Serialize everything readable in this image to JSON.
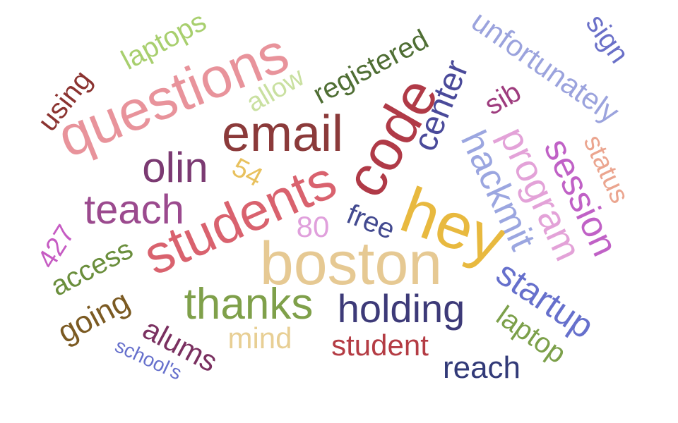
{
  "words": [
    {
      "text": "boston",
      "color": "#e6c993"
    },
    {
      "text": "students",
      "color": "#d9626e"
    },
    {
      "text": "hey",
      "color": "#e8b93f"
    },
    {
      "text": "code",
      "color": "#b03a47"
    },
    {
      "text": "email",
      "color": "#8b3a3a"
    },
    {
      "text": "questions",
      "color": "#e8939b"
    },
    {
      "text": "holding",
      "color": "#3d3a78"
    },
    {
      "text": "thanks",
      "color": "#7fa04a"
    },
    {
      "text": "teach",
      "color": "#9b4a8e"
    },
    {
      "text": "olin",
      "color": "#7b3a72"
    },
    {
      "text": "hackmit",
      "color": "#9ba6e0"
    },
    {
      "text": "program",
      "color": "#e3a2d8"
    },
    {
      "text": "session",
      "color": "#c061c6"
    },
    {
      "text": "startup",
      "color": "#6670cc"
    },
    {
      "text": "center",
      "color": "#4a4a9a"
    },
    {
      "text": "registered",
      "color": "#4f6e34"
    },
    {
      "text": "unfortunately",
      "color": "#9ba3dd"
    },
    {
      "text": "student",
      "color": "#b43c44"
    },
    {
      "text": "reach",
      "color": "#323a78"
    },
    {
      "text": "laptop",
      "color": "#7ca04a"
    },
    {
      "text": "access",
      "color": "#6a8e3c"
    },
    {
      "text": "going",
      "color": "#7b5a22"
    },
    {
      "text": "alums",
      "color": "#7a3060"
    },
    {
      "text": "mind",
      "color": "#e8cf94"
    },
    {
      "text": "free",
      "color": "#434a90"
    },
    {
      "text": "laptops",
      "color": "#a8cf6e"
    },
    {
      "text": "using",
      "color": "#8b3330"
    },
    {
      "text": "sign",
      "color": "#6a70c8"
    },
    {
      "text": "allow",
      "color": "#c9e0a0"
    },
    {
      "text": "status",
      "color": "#eba58f"
    },
    {
      "text": "sib",
      "color": "#9e3c7e"
    },
    {
      "text": "54",
      "color": "#e8c15e"
    },
    {
      "text": "80",
      "color": "#e0a0dc"
    },
    {
      "text": "427",
      "color": "#c65cc3"
    },
    {
      "text": "school's",
      "color": "#6670cc"
    }
  ]
}
